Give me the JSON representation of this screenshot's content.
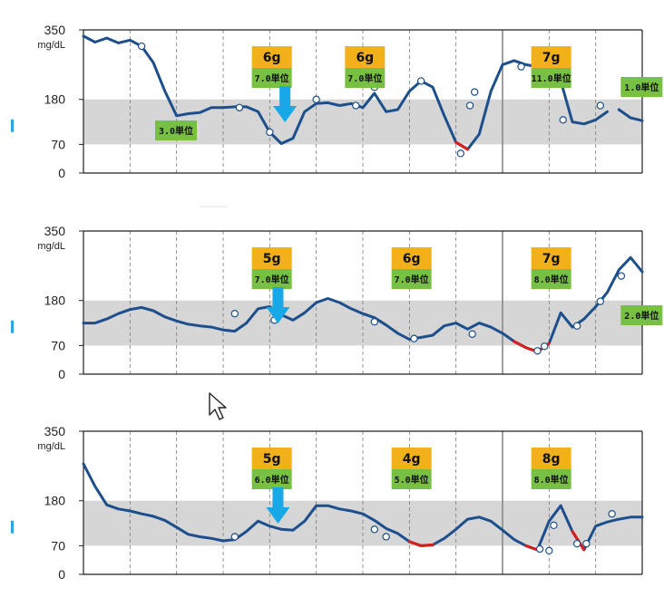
{
  "colors": {
    "curve": "#1c4f8c",
    "low": "#d42020",
    "target_band": "#d6d6d6",
    "carb_box": "#f2b01a",
    "insulin_box": "#78c043",
    "arrow": "#18a8e8",
    "grid": "#7a7a7a",
    "side_mark": "#29a8e0"
  },
  "icons": {
    "meal_marker": "down-arrow-icon",
    "cursor": "mouse-pointer-icon"
  },
  "chart_data": [
    {
      "type": "line",
      "unit": "mg/dL",
      "y_ticks": [
        "350",
        "180",
        "70",
        "0"
      ],
      "ylim": [
        0,
        350
      ],
      "target_range": [
        70,
        180
      ],
      "xlim": [
        0,
        24
      ],
      "grid": "dashed vertical hour lines",
      "series": [
        {
          "values": [
            [
              0,
              335
            ],
            [
              0.5,
              320
            ],
            [
              1,
              330
            ],
            [
              1.5,
              318
            ],
            [
              2,
              325
            ],
            [
              2.5,
              310
            ],
            [
              3,
              270
            ],
            [
              3.5,
              200
            ],
            [
              4,
              140
            ],
            [
              4.5,
              145
            ],
            [
              5,
              148
            ],
            [
              5.5,
              160
            ],
            [
              6,
              160
            ],
            [
              6.5,
              162
            ],
            [
              7,
              162
            ],
            [
              7.5,
              150
            ],
            [
              8,
              100
            ],
            [
              8.5,
              72
            ],
            [
              9,
              85
            ],
            [
              9.5,
              150
            ],
            [
              10,
              170
            ],
            [
              10.5,
              172
            ],
            [
              11,
              165
            ],
            [
              11.5,
              170
            ],
            [
              12,
              160
            ],
            [
              12.5,
              195
            ],
            [
              13,
              150
            ],
            [
              13.5,
              155
            ],
            [
              14,
              200
            ],
            [
              14.5,
              225
            ],
            [
              15,
              210
            ],
            [
              15.5,
              140
            ],
            [
              16,
              75
            ],
            [
              16.5,
              58
            ],
            [
              17,
              95
            ],
            [
              17.5,
              200
            ],
            [
              18,
              265
            ],
            [
              18.5,
              275
            ],
            [
              19,
              265
            ],
            [
              19.5,
              260
            ],
            [
              20,
              255
            ],
            [
              20.5,
              225
            ],
            [
              21,
              125
            ],
            [
              21.5,
              120
            ],
            [
              22,
              130
            ],
            [
              22.5,
              150
            ],
            [
              23,
              155
            ],
            [
              23.5,
              135
            ],
            [
              24,
              128
            ]
          ],
          "gap_after_hour": 22.5,
          "low_segments": [
            [
              15.8,
              16.4
            ]
          ],
          "checks": [
            [
              2.5,
              310
            ],
            [
              6.7,
              160
            ],
            [
              8,
              100
            ],
            [
              10,
              180
            ],
            [
              11.7,
              165
            ],
            [
              12.5,
              210
            ],
            [
              14.5,
              225
            ],
            [
              16.2,
              48
            ],
            [
              16.6,
              165
            ],
            [
              16.8,
              198
            ],
            [
              18.8,
              260
            ],
            [
              20.6,
              130
            ],
            [
              22.2,
              165
            ]
          ]
        }
      ],
      "meals": [
        {
          "hour": 7,
          "carbs": "6g",
          "insulin": "7.0単位",
          "arrow_hour": 8.5
        },
        {
          "hour": 11,
          "carbs": "6g",
          "insulin": "7.0単位"
        },
        {
          "hour": 19,
          "carbs": "7g",
          "insulin": "11.0単位"
        }
      ],
      "insulin_only": [
        {
          "hour": 3,
          "insulin": "3.0単位"
        },
        {
          "hour": 23,
          "insulin": "1.0単位"
        }
      ]
    },
    {
      "type": "line",
      "unit": "mg/dL",
      "y_ticks": [
        "350",
        "180",
        "70",
        "0"
      ],
      "ylim": [
        0,
        350
      ],
      "target_range": [
        70,
        180
      ],
      "xlim": [
        0,
        24
      ],
      "grid": "dashed vertical hour lines",
      "series": [
        {
          "values": [
            [
              0,
              125
            ],
            [
              0.5,
              125
            ],
            [
              1,
              135
            ],
            [
              1.5,
              148
            ],
            [
              2,
              158
            ],
            [
              2.5,
              163
            ],
            [
              3,
              155
            ],
            [
              3.5,
              140
            ],
            [
              4,
              130
            ],
            [
              4.5,
              122
            ],
            [
              5,
              118
            ],
            [
              5.5,
              115
            ],
            [
              6,
              108
            ],
            [
              6.5,
              105
            ],
            [
              7,
              125
            ],
            [
              7.5,
              160
            ],
            [
              8,
              165
            ],
            [
              8.5,
              145
            ],
            [
              9,
              132
            ],
            [
              9.5,
              150
            ],
            [
              10,
              175
            ],
            [
              10.5,
              185
            ],
            [
              11,
              175
            ],
            [
              11.5,
              160
            ],
            [
              12,
              148
            ],
            [
              12.5,
              138
            ],
            [
              13,
              120
            ],
            [
              13.5,
              100
            ],
            [
              14,
              85
            ],
            [
              14.5,
              90
            ],
            [
              15,
              95
            ],
            [
              15.5,
              118
            ],
            [
              16,
              125
            ],
            [
              16.5,
              110
            ],
            [
              17,
              125
            ],
            [
              17.5,
              115
            ],
            [
              18,
              100
            ],
            [
              18.5,
              80
            ],
            [
              19,
              65
            ],
            [
              19.5,
              55
            ],
            [
              20,
              75
            ],
            [
              20.5,
              150
            ],
            [
              21,
              115
            ],
            [
              21.5,
              135
            ],
            [
              22,
              165
            ],
            [
              22.5,
              200
            ],
            [
              23,
              255
            ],
            [
              23.5,
              285
            ],
            [
              24,
              250
            ]
          ],
          "low_segments": [
            [
              18.5,
              20.0
            ]
          ],
          "checks": [
            [
              6.5,
              148
            ],
            [
              8.2,
              132
            ],
            [
              12.5,
              128
            ],
            [
              14.2,
              87
            ],
            [
              16.7,
              98
            ],
            [
              19.5,
              57
            ],
            [
              19.8,
              68
            ],
            [
              21.2,
              118
            ],
            [
              22.2,
              178
            ],
            [
              23.1,
              240
            ]
          ]
        }
      ],
      "meals": [
        {
          "hour": 7,
          "carbs": "5g",
          "insulin": "7.0単位",
          "arrow_hour": 8.2
        },
        {
          "hour": 13,
          "carbs": "6g",
          "insulin": "7.0単位"
        },
        {
          "hour": 19,
          "carbs": "7g",
          "insulin": "8.0単位"
        }
      ],
      "insulin_only": [
        {
          "hour": 23,
          "insulin": "2.0単位"
        }
      ]
    },
    {
      "type": "line",
      "unit": "mg/dL",
      "y_ticks": [
        "350",
        "180",
        "70",
        "0"
      ],
      "ylim": [
        0,
        350
      ],
      "target_range": [
        70,
        180
      ],
      "xlim": [
        0,
        24
      ],
      "grid": "dashed vertical hour lines",
      "series": [
        {
          "values": [
            [
              0,
              270
            ],
            [
              0.5,
              215
            ],
            [
              1,
              170
            ],
            [
              1.5,
              160
            ],
            [
              2,
              155
            ],
            [
              2.5,
              148
            ],
            [
              3,
              142
            ],
            [
              3.5,
              132
            ],
            [
              4,
              115
            ],
            [
              4.5,
              98
            ],
            [
              5,
              92
            ],
            [
              5.5,
              88
            ],
            [
              6,
              82
            ],
            [
              6.5,
              85
            ],
            [
              7,
              105
            ],
            [
              7.5,
              130
            ],
            [
              8,
              118
            ],
            [
              8.5,
              110
            ],
            [
              9,
              108
            ],
            [
              9.5,
              130
            ],
            [
              10,
              168
            ],
            [
              10.5,
              168
            ],
            [
              11,
              160
            ],
            [
              11.5,
              155
            ],
            [
              12,
              148
            ],
            [
              12.5,
              132
            ],
            [
              13,
              112
            ],
            [
              13.5,
              100
            ],
            [
              14,
              80
            ],
            [
              14.5,
              70
            ],
            [
              15,
              72
            ],
            [
              15.5,
              88
            ],
            [
              16,
              110
            ],
            [
              16.5,
              135
            ],
            [
              17,
              140
            ],
            [
              17.5,
              130
            ],
            [
              18,
              108
            ],
            [
              18.5,
              85
            ],
            [
              19,
              70
            ],
            [
              19.5,
              60
            ],
            [
              20,
              130
            ],
            [
              20.5,
              168
            ],
            [
              21,
              105
            ],
            [
              21.5,
              60
            ],
            [
              22,
              118
            ],
            [
              22.5,
              128
            ],
            [
              23,
              135
            ],
            [
              23.5,
              140
            ],
            [
              24,
              140
            ]
          ],
          "low_segments": [
            [
              14.0,
              15.0
            ],
            [
              19.0,
              19.6
            ],
            [
              21.2,
              21.6
            ]
          ],
          "checks": [
            [
              6.5,
              92
            ],
            [
              12.5,
              110
            ],
            [
              13,
              92
            ],
            [
              19.6,
              62
            ],
            [
              20,
              58
            ],
            [
              20.2,
              120
            ],
            [
              21.2,
              75
            ],
            [
              21.6,
              75
            ],
            [
              22.7,
              148
            ]
          ]
        }
      ],
      "meals": [
        {
          "hour": 7,
          "carbs": "5g",
          "insulin": "6.0単位",
          "arrow_hour": 8.2
        },
        {
          "hour": 13,
          "carbs": "4g",
          "insulin": "5.0単位"
        },
        {
          "hour": 19,
          "carbs": "8g",
          "insulin": "8.0単位"
        }
      ],
      "insulin_only": []
    }
  ]
}
